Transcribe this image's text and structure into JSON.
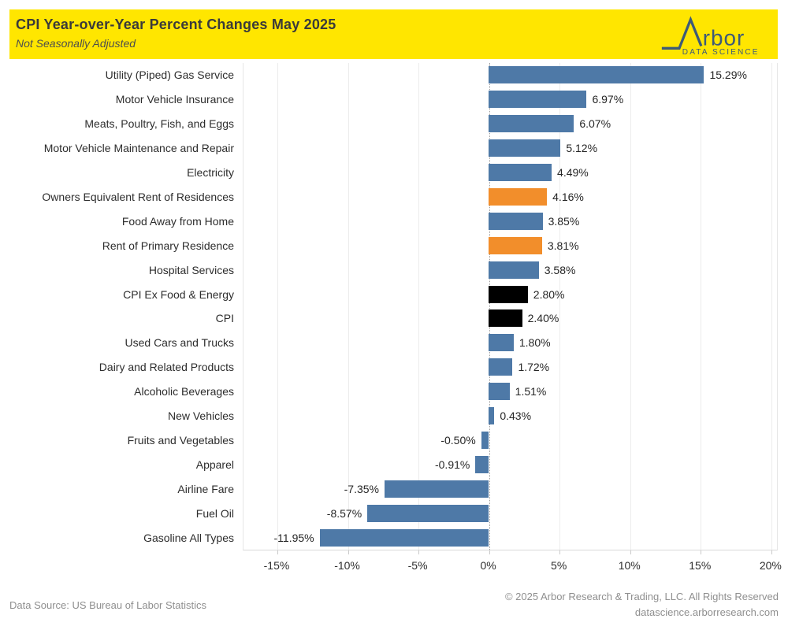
{
  "header": {
    "title": "CPI Year-over-Year Percent Changes May 2025",
    "subtitle": "Not Seasonally Adjusted",
    "banner_color": "#FFE600",
    "logo": {
      "brand_text": "rbor",
      "tagline": "DATA SCIENCE",
      "color": "#3D5A78"
    }
  },
  "chart_data": {
    "type": "bar",
    "orientation": "horizontal",
    "title": "CPI Year-over-Year Percent Changes May 2025",
    "subtitle": "Not Seasonally Adjusted",
    "xlabel": "",
    "ylabel": "",
    "xlim": [
      -17.4,
      20.4
    ],
    "grid": true,
    "legend": "none",
    "palette": {
      "blue": "#4E79A7",
      "orange": "#F28E2B",
      "black": "#000000"
    },
    "axis_ticks": [
      {
        "value": -15,
        "label": "-15%"
      },
      {
        "value": -10,
        "label": "-10%"
      },
      {
        "value": -5,
        "label": "-5%"
      },
      {
        "value": 0,
        "label": "0%"
      },
      {
        "value": 5,
        "label": "5%"
      },
      {
        "value": 10,
        "label": "10%"
      },
      {
        "value": 15,
        "label": "15%"
      },
      {
        "value": 20,
        "label": "20%"
      }
    ],
    "items": [
      {
        "category": "Utility (Piped) Gas Service",
        "value": 15.29,
        "display": "15.29%",
        "color": "blue"
      },
      {
        "category": "Motor Vehicle Insurance",
        "value": 6.97,
        "display": "6.97%",
        "color": "blue"
      },
      {
        "category": "Meats, Poultry, Fish, and Eggs",
        "value": 6.07,
        "display": "6.07%",
        "color": "blue"
      },
      {
        "category": "Motor Vehicle Maintenance and Repair",
        "value": 5.12,
        "display": "5.12%",
        "color": "blue"
      },
      {
        "category": "Electricity",
        "value": 4.49,
        "display": "4.49%",
        "color": "blue"
      },
      {
        "category": "Owners Equivalent Rent of Residences",
        "value": 4.16,
        "display": "4.16%",
        "color": "orange"
      },
      {
        "category": "Food Away from Home",
        "value": 3.85,
        "display": "3.85%",
        "color": "blue"
      },
      {
        "category": "Rent of Primary Residence",
        "value": 3.81,
        "display": "3.81%",
        "color": "orange"
      },
      {
        "category": "Hospital Services",
        "value": 3.58,
        "display": "3.58%",
        "color": "blue"
      },
      {
        "category": "CPI Ex Food & Energy",
        "value": 2.8,
        "display": "2.80%",
        "color": "black"
      },
      {
        "category": "CPI",
        "value": 2.4,
        "display": "2.40%",
        "color": "black"
      },
      {
        "category": "Used Cars and Trucks",
        "value": 1.8,
        "display": "1.80%",
        "color": "blue"
      },
      {
        "category": "Dairy and Related Products",
        "value": 1.72,
        "display": "1.72%",
        "color": "blue"
      },
      {
        "category": "Alcoholic Beverages",
        "value": 1.51,
        "display": "1.51%",
        "color": "blue"
      },
      {
        "category": "New Vehicles",
        "value": 0.43,
        "display": "0.43%",
        "color": "blue"
      },
      {
        "category": "Fruits and Vegetables",
        "value": -0.5,
        "display": "-0.50%",
        "color": "blue"
      },
      {
        "category": "Apparel",
        "value": -0.91,
        "display": "-0.91%",
        "color": "blue"
      },
      {
        "category": "Airline Fare",
        "value": -7.35,
        "display": "-7.35%",
        "color": "blue"
      },
      {
        "category": "Fuel Oil",
        "value": -8.57,
        "display": "-8.57%",
        "color": "blue"
      },
      {
        "category": "Gasoline All Types",
        "value": -11.95,
        "display": "-11.95%",
        "color": "blue"
      }
    ]
  },
  "footer": {
    "source": "Data Source: US Bureau of Labor Statistics",
    "copyright": "© 2025 Arbor Research & Trading, LLC. All Rights Reserved",
    "website": "datascience.arborresearch.com"
  }
}
